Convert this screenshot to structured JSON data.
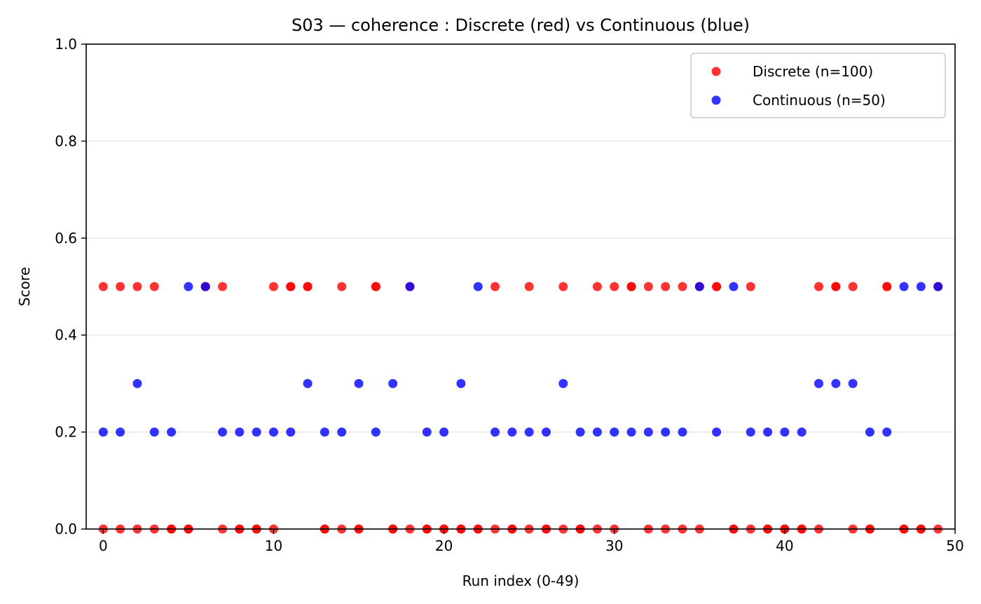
{
  "chart_data": {
    "type": "scatter",
    "title": "S03 — coherence : Discrete (red) vs Continuous (blue)",
    "xlabel": "Run index (0-49)",
    "ylabel": "Score",
    "xlim": [
      -1,
      50
    ],
    "ylim": [
      0.0,
      1.0
    ],
    "xticks": [
      0,
      10,
      20,
      30,
      40,
      50
    ],
    "xtick_labels": [
      "0",
      "10",
      "20",
      "30",
      "40",
      "50"
    ],
    "yticks": [
      0.0,
      0.2,
      0.4,
      0.6,
      0.8,
      1.0
    ],
    "ytick_labels": [
      "0.0",
      "0.2",
      "0.4",
      "0.6",
      "0.8",
      "1.0"
    ],
    "grid": "horizontal",
    "legend_position": "top-right",
    "series": [
      {
        "name": "Discrete (n=100)",
        "color": "#ff0000",
        "points": [
          [
            0,
            0.5
          ],
          [
            0,
            0.0
          ],
          [
            1,
            0.5
          ],
          [
            1,
            0.0
          ],
          [
            2,
            0.5
          ],
          [
            2,
            0.0
          ],
          [
            3,
            0.5
          ],
          [
            3,
            0.0
          ],
          [
            4,
            0.0
          ],
          [
            4,
            0.0
          ],
          [
            5,
            0.0
          ],
          [
            5,
            0.0
          ],
          [
            6,
            0.5
          ],
          [
            6,
            0.5
          ],
          [
            7,
            0.5
          ],
          [
            7,
            0.0
          ],
          [
            8,
            0.0
          ],
          [
            8,
            0.0
          ],
          [
            9,
            0.0
          ],
          [
            9,
            0.0
          ],
          [
            10,
            0.5
          ],
          [
            10,
            0.0
          ],
          [
            11,
            0.5
          ],
          [
            11,
            0.5
          ],
          [
            12,
            0.5
          ],
          [
            12,
            0.5
          ],
          [
            13,
            0.0
          ],
          [
            13,
            0.0
          ],
          [
            14,
            0.5
          ],
          [
            14,
            0.0
          ],
          [
            15,
            0.0
          ],
          [
            15,
            0.0
          ],
          [
            16,
            0.5
          ],
          [
            16,
            0.5
          ],
          [
            17,
            0.0
          ],
          [
            17,
            0.0
          ],
          [
            18,
            0.5
          ],
          [
            18,
            0.0
          ],
          [
            19,
            0.0
          ],
          [
            19,
            0.0
          ],
          [
            20,
            0.0
          ],
          [
            20,
            0.0
          ],
          [
            21,
            0.0
          ],
          [
            21,
            0.0
          ],
          [
            22,
            0.0
          ],
          [
            22,
            0.0
          ],
          [
            23,
            0.5
          ],
          [
            23,
            0.0
          ],
          [
            24,
            0.0
          ],
          [
            24,
            0.0
          ],
          [
            25,
            0.5
          ],
          [
            25,
            0.0
          ],
          [
            26,
            0.0
          ],
          [
            26,
            0.0
          ],
          [
            27,
            0.5
          ],
          [
            27,
            0.0
          ],
          [
            28,
            0.0
          ],
          [
            28,
            0.0
          ],
          [
            29,
            0.5
          ],
          [
            29,
            0.0
          ],
          [
            30,
            0.5
          ],
          [
            30,
            0.0
          ],
          [
            31,
            0.5
          ],
          [
            31,
            0.5
          ],
          [
            32,
            0.5
          ],
          [
            32,
            0.0
          ],
          [
            33,
            0.5
          ],
          [
            33,
            0.0
          ],
          [
            34,
            0.5
          ],
          [
            34,
            0.0
          ],
          [
            35,
            0.5
          ],
          [
            35,
            0.0
          ],
          [
            36,
            0.5
          ],
          [
            36,
            0.5
          ],
          [
            37,
            0.0
          ],
          [
            37,
            0.0
          ],
          [
            38,
            0.5
          ],
          [
            38,
            0.0
          ],
          [
            39,
            0.0
          ],
          [
            39,
            0.0
          ],
          [
            40,
            0.0
          ],
          [
            40,
            0.0
          ],
          [
            41,
            0.0
          ],
          [
            41,
            0.0
          ],
          [
            42,
            0.5
          ],
          [
            42,
            0.0
          ],
          [
            43,
            0.5
          ],
          [
            43,
            0.5
          ],
          [
            44,
            0.5
          ],
          [
            44,
            0.0
          ],
          [
            45,
            0.0
          ],
          [
            45,
            0.0
          ],
          [
            46,
            0.5
          ],
          [
            46,
            0.5
          ],
          [
            47,
            0.0
          ],
          [
            47,
            0.0
          ],
          [
            48,
            0.0
          ],
          [
            48,
            0.0
          ],
          [
            49,
            0.5
          ],
          [
            49,
            0.0
          ]
        ]
      },
      {
        "name": "Continuous (n=50)",
        "color": "#0000ff",
        "points": [
          [
            0,
            0.2
          ],
          [
            1,
            0.2
          ],
          [
            2,
            0.3
          ],
          [
            3,
            0.2
          ],
          [
            4,
            0.2
          ],
          [
            5,
            0.5
          ],
          [
            6,
            0.5
          ],
          [
            7,
            0.2
          ],
          [
            8,
            0.2
          ],
          [
            9,
            0.2
          ],
          [
            10,
            0.2
          ],
          [
            11,
            0.2
          ],
          [
            12,
            0.3
          ],
          [
            13,
            0.2
          ],
          [
            14,
            0.2
          ],
          [
            15,
            0.3
          ],
          [
            16,
            0.2
          ],
          [
            17,
            0.3
          ],
          [
            18,
            0.5
          ],
          [
            19,
            0.2
          ],
          [
            20,
            0.2
          ],
          [
            21,
            0.3
          ],
          [
            22,
            0.5
          ],
          [
            23,
            0.2
          ],
          [
            24,
            0.2
          ],
          [
            25,
            0.2
          ],
          [
            26,
            0.2
          ],
          [
            27,
            0.3
          ],
          [
            28,
            0.2
          ],
          [
            29,
            0.2
          ],
          [
            30,
            0.2
          ],
          [
            31,
            0.2
          ],
          [
            32,
            0.2
          ],
          [
            33,
            0.2
          ],
          [
            34,
            0.2
          ],
          [
            35,
            0.5
          ],
          [
            36,
            0.2
          ],
          [
            37,
            0.5
          ],
          [
            38,
            0.2
          ],
          [
            39,
            0.2
          ],
          [
            40,
            0.2
          ],
          [
            41,
            0.2
          ],
          [
            42,
            0.3
          ],
          [
            43,
            0.3
          ],
          [
            44,
            0.3
          ],
          [
            45,
            0.2
          ],
          [
            46,
            0.2
          ],
          [
            47,
            0.5
          ],
          [
            48,
            0.5
          ],
          [
            49,
            0.5
          ]
        ]
      }
    ]
  }
}
